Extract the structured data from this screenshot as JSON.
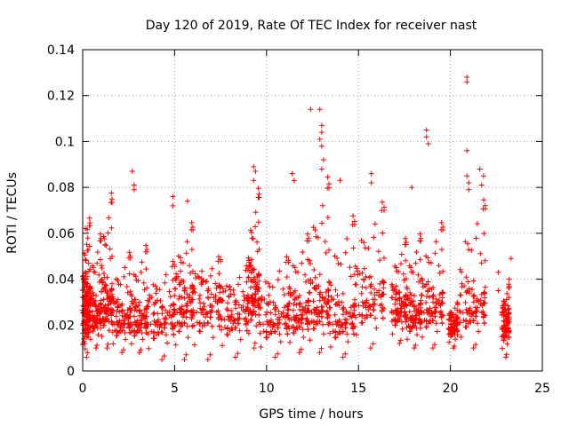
{
  "chart_data": {
    "type": "scatter",
    "title": "Day 120 of 2019, Rate Of TEC Index for receiver nast",
    "xlabel": "GPS time / hours",
    "ylabel": "ROTI / TECUs",
    "xlim": [
      0,
      25
    ],
    "ylim": [
      0,
      0.14
    ],
    "grid": true,
    "marker": "plus",
    "color": "#ff0000",
    "x_ticks": [
      {
        "value": 0,
        "label": "0"
      },
      {
        "value": 5,
        "label": "5"
      },
      {
        "value": 10,
        "label": "10"
      },
      {
        "value": 15,
        "label": "15"
      },
      {
        "value": 20,
        "label": "20"
      },
      {
        "value": 25,
        "label": "25"
      }
    ],
    "y_ticks": [
      {
        "value": 0,
        "label": "0"
      },
      {
        "value": 0.02,
        "label": "0.02"
      },
      {
        "value": 0.04,
        "label": "0.04"
      },
      {
        "value": 0.06,
        "label": "0.06"
      },
      {
        "value": 0.08,
        "label": "0.08"
      },
      {
        "value": 0.1,
        "label": "0.1"
      },
      {
        "value": 0.12,
        "label": "0.12"
      },
      {
        "value": 0.14,
        "label": "0.14"
      }
    ],
    "outlier_points": [
      {
        "x": 2.7,
        "y": 0.087
      },
      {
        "x": 2.8,
        "y": 0.081
      },
      {
        "x": 2.8,
        "y": 0.079
      },
      {
        "x": 4.9,
        "y": 0.076
      },
      {
        "x": 4.9,
        "y": 0.072
      },
      {
        "x": 5.7,
        "y": 0.074
      },
      {
        "x": 9.3,
        "y": 0.089
      },
      {
        "x": 9.4,
        "y": 0.087
      },
      {
        "x": 9.3,
        "y": 0.083
      },
      {
        "x": 11.4,
        "y": 0.086
      },
      {
        "x": 11.5,
        "y": 0.083
      },
      {
        "x": 12.4,
        "y": 0.114
      },
      {
        "x": 12.9,
        "y": 0.114
      },
      {
        "x": 13.0,
        "y": 0.107
      },
      {
        "x": 13.0,
        "y": 0.104
      },
      {
        "x": 12.9,
        "y": 0.101
      },
      {
        "x": 13.0,
        "y": 0.098
      },
      {
        "x": 13.1,
        "y": 0.092
      },
      {
        "x": 13.0,
        "y": 0.088
      },
      {
        "x": 14.0,
        "y": 0.083
      },
      {
        "x": 15.7,
        "y": 0.086
      },
      {
        "x": 15.7,
        "y": 0.082
      },
      {
        "x": 17.9,
        "y": 0.08
      },
      {
        "x": 18.7,
        "y": 0.105
      },
      {
        "x": 18.7,
        "y": 0.102
      },
      {
        "x": 18.8,
        "y": 0.099
      },
      {
        "x": 20.9,
        "y": 0.128
      },
      {
        "x": 20.9,
        "y": 0.126
      },
      {
        "x": 20.9,
        "y": 0.096
      },
      {
        "x": 20.9,
        "y": 0.085
      },
      {
        "x": 21.0,
        "y": 0.082
      },
      {
        "x": 21.0,
        "y": 0.079
      },
      {
        "x": 21.6,
        "y": 0.088
      },
      {
        "x": 21.8,
        "y": 0.085
      },
      {
        "x": 21.7,
        "y": 0.081
      },
      {
        "x": 22.6,
        "y": 0.043
      },
      {
        "x": 22.6,
        "y": 0.035
      },
      {
        "x": 23.3,
        "y": 0.049
      },
      {
        "x": 23.2,
        "y": 0.04
      }
    ],
    "dense_segments": [
      {
        "x_start": 0.0,
        "x_end": 0.4,
        "y_min": 0.006,
        "y_max": 0.067,
        "y_median": 0.025,
        "density": 170
      },
      {
        "x_start": 0.4,
        "x_end": 1.0,
        "y_min": 0.01,
        "y_max": 0.06,
        "y_median": 0.022,
        "density": 170
      },
      {
        "x_start": 1.0,
        "x_end": 1.6,
        "y_min": 0.01,
        "y_max": 0.078,
        "y_median": 0.026,
        "density": 170
      },
      {
        "x_start": 1.6,
        "x_end": 2.6,
        "y_min": 0.008,
        "y_max": 0.052,
        "y_median": 0.02,
        "density": 190
      },
      {
        "x_start": 2.6,
        "x_end": 3.5,
        "y_min": 0.008,
        "y_max": 0.055,
        "y_median": 0.02,
        "density": 170
      },
      {
        "x_start": 3.5,
        "x_end": 5.0,
        "y_min": 0.005,
        "y_max": 0.048,
        "y_median": 0.02,
        "density": 300
      },
      {
        "x_start": 5.0,
        "x_end": 6.0,
        "y_min": 0.005,
        "y_max": 0.065,
        "y_median": 0.025,
        "density": 280
      },
      {
        "x_start": 6.0,
        "x_end": 7.5,
        "y_min": 0.005,
        "y_max": 0.05,
        "y_median": 0.025,
        "density": 360
      },
      {
        "x_start": 7.5,
        "x_end": 9.0,
        "y_min": 0.006,
        "y_max": 0.046,
        "y_median": 0.022,
        "density": 260
      },
      {
        "x_start": 9.0,
        "x_end": 9.6,
        "y_min": 0.01,
        "y_max": 0.08,
        "y_median": 0.03,
        "density": 150
      },
      {
        "x_start": 9.6,
        "x_end": 11.2,
        "y_min": 0.006,
        "y_max": 0.05,
        "y_median": 0.02,
        "density": 250
      },
      {
        "x_start": 11.2,
        "x_end": 12.3,
        "y_min": 0.008,
        "y_max": 0.06,
        "y_median": 0.022,
        "density": 190
      },
      {
        "x_start": 12.3,
        "x_end": 13.4,
        "y_min": 0.008,
        "y_max": 0.085,
        "y_median": 0.025,
        "density": 240
      },
      {
        "x_start": 13.4,
        "x_end": 14.8,
        "y_min": 0.006,
        "y_max": 0.068,
        "y_median": 0.02,
        "density": 220
      },
      {
        "x_start": 14.8,
        "x_end": 16.4,
        "y_min": 0.01,
        "y_max": 0.074,
        "y_median": 0.028,
        "density": 240
      },
      {
        "x_start": 16.8,
        "x_end": 17.6,
        "y_min": 0.012,
        "y_max": 0.058,
        "y_median": 0.025,
        "density": 130
      },
      {
        "x_start": 17.6,
        "x_end": 18.4,
        "y_min": 0.01,
        "y_max": 0.06,
        "y_median": 0.022,
        "density": 130
      },
      {
        "x_start": 18.4,
        "x_end": 19.6,
        "y_min": 0.01,
        "y_max": 0.065,
        "y_median": 0.025,
        "density": 170
      },
      {
        "x_start": 19.9,
        "x_end": 20.4,
        "y_min": 0.01,
        "y_max": 0.03,
        "y_median": 0.018,
        "density": 80
      },
      {
        "x_start": 20.5,
        "x_end": 21.9,
        "y_min": 0.01,
        "y_max": 0.075,
        "y_median": 0.025,
        "density": 250
      },
      {
        "x_start": 22.8,
        "x_end": 23.2,
        "y_min": 0.006,
        "y_max": 0.038,
        "y_median": 0.018,
        "density": 140
      }
    ]
  }
}
